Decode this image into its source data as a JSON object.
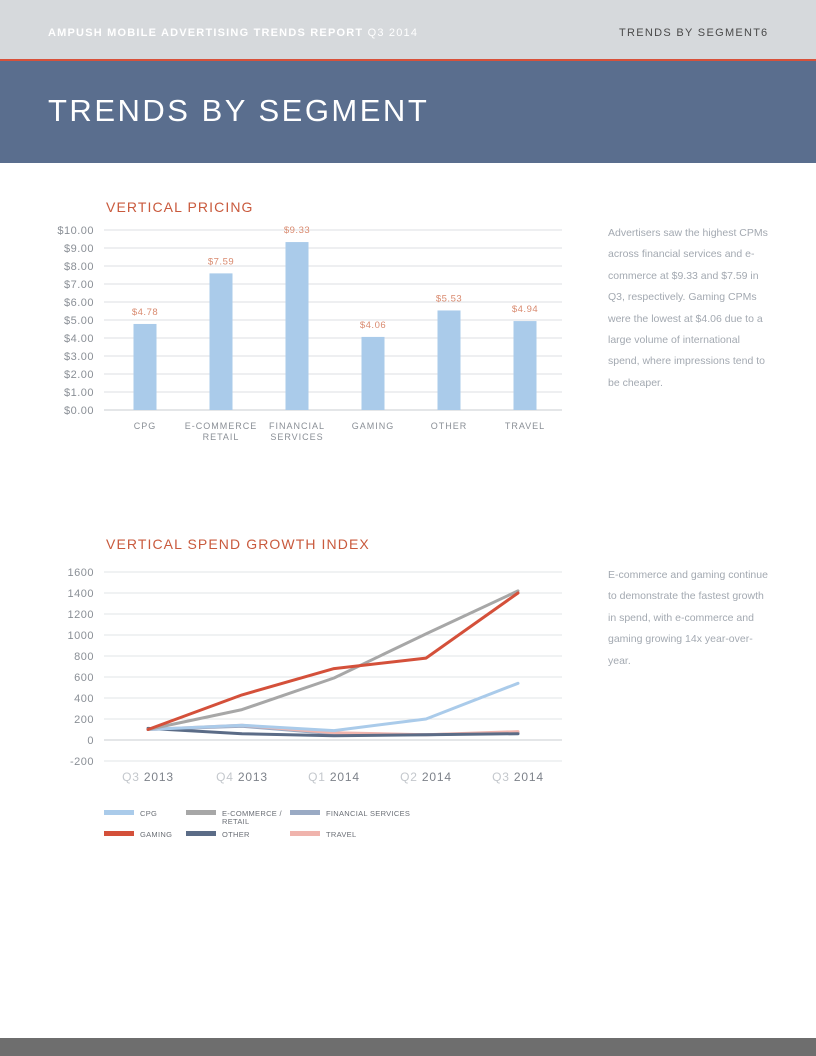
{
  "header": {
    "report_bold": "AMPUSH MOBILE ADVERTISING TRENDS REPORT",
    "report_quarter": "Q3 2014",
    "section": "TRENDS BY SEGMENT",
    "page_number": "6"
  },
  "banner": {
    "title": "TRENDS BY SEGMENT"
  },
  "pricing": {
    "description": "Advertisers saw the highest CPMs across financial services and e-commerce at $9.33 and $7.59 in Q3, respectively. Gaming CPMs were the lowest at $4.06 due to a large volume of international spend, where impressions tend to be cheaper."
  },
  "growth": {
    "description": "E-commerce and gaming continue to demonstrate the fastest growth in spend, with e-commerce and gaming growing 14x year-over-year."
  },
  "colors": {
    "accent": "#c95a3d",
    "banner": "#5a6e8e",
    "bar": "#aacbea"
  },
  "chart_data": [
    {
      "type": "bar",
      "title": "VERTICAL PRICING",
      "categories": [
        [
          "CPG"
        ],
        [
          "E-COMMERCE",
          "RETAIL"
        ],
        [
          "FINANCIAL",
          "SERVICES"
        ],
        [
          "GAMING"
        ],
        [
          "OTHER"
        ],
        [
          "TRAVEL"
        ]
      ],
      "values": [
        4.78,
        7.59,
        9.33,
        4.06,
        5.53,
        4.94
      ],
      "data_labels": [
        "$4.78",
        "$7.59",
        "$9.33",
        "$4.06",
        "$5.53",
        "$4.94"
      ],
      "yticks": [
        "$0.00",
        "$1.00",
        "$2.00",
        "$3.00",
        "$4.00",
        "$5.00",
        "$6.00",
        "$7.00",
        "$8.00",
        "$9.00",
        "$10.00"
      ],
      "ylim": [
        0,
        10
      ],
      "grid": true
    },
    {
      "type": "line",
      "title": "VERTICAL SPEND GROWTH INDEX",
      "categories": [
        [
          "Q3",
          "2013"
        ],
        [
          "Q4",
          "2013"
        ],
        [
          "Q1",
          "2014"
        ],
        [
          "Q2",
          "2014"
        ],
        [
          "Q3",
          "2014"
        ]
      ],
      "yticks": [
        "-200",
        "0",
        "200",
        "400",
        "600",
        "800",
        "1000",
        "1200",
        "1400",
        "1600"
      ],
      "ylim": [
        -200,
        1600
      ],
      "grid": true,
      "legend_position": "bottom",
      "series": [
        {
          "name": "CPG",
          "color": "#aacbea",
          "values": [
            100,
            140,
            90,
            200,
            540
          ]
        },
        {
          "name": "E-COMMERCE / RETAIL",
          "color": "#a7a7a7",
          "values": [
            100,
            290,
            590,
            1010,
            1420
          ]
        },
        {
          "name": "FINANCIAL SERVICES",
          "color": "#9aaac4",
          "values": [
            100,
            130,
            60,
            50,
            70
          ]
        },
        {
          "name": "GAMING",
          "color": "#d4503a",
          "values": [
            100,
            430,
            680,
            780,
            1400
          ]
        },
        {
          "name": "OTHER",
          "color": "#5b6c87",
          "values": [
            110,
            60,
            40,
            50,
            60
          ]
        },
        {
          "name": "TRAVEL",
          "color": "#f0b4ad",
          "values": [
            100,
            140,
            70,
            50,
            80
          ]
        }
      ]
    }
  ]
}
